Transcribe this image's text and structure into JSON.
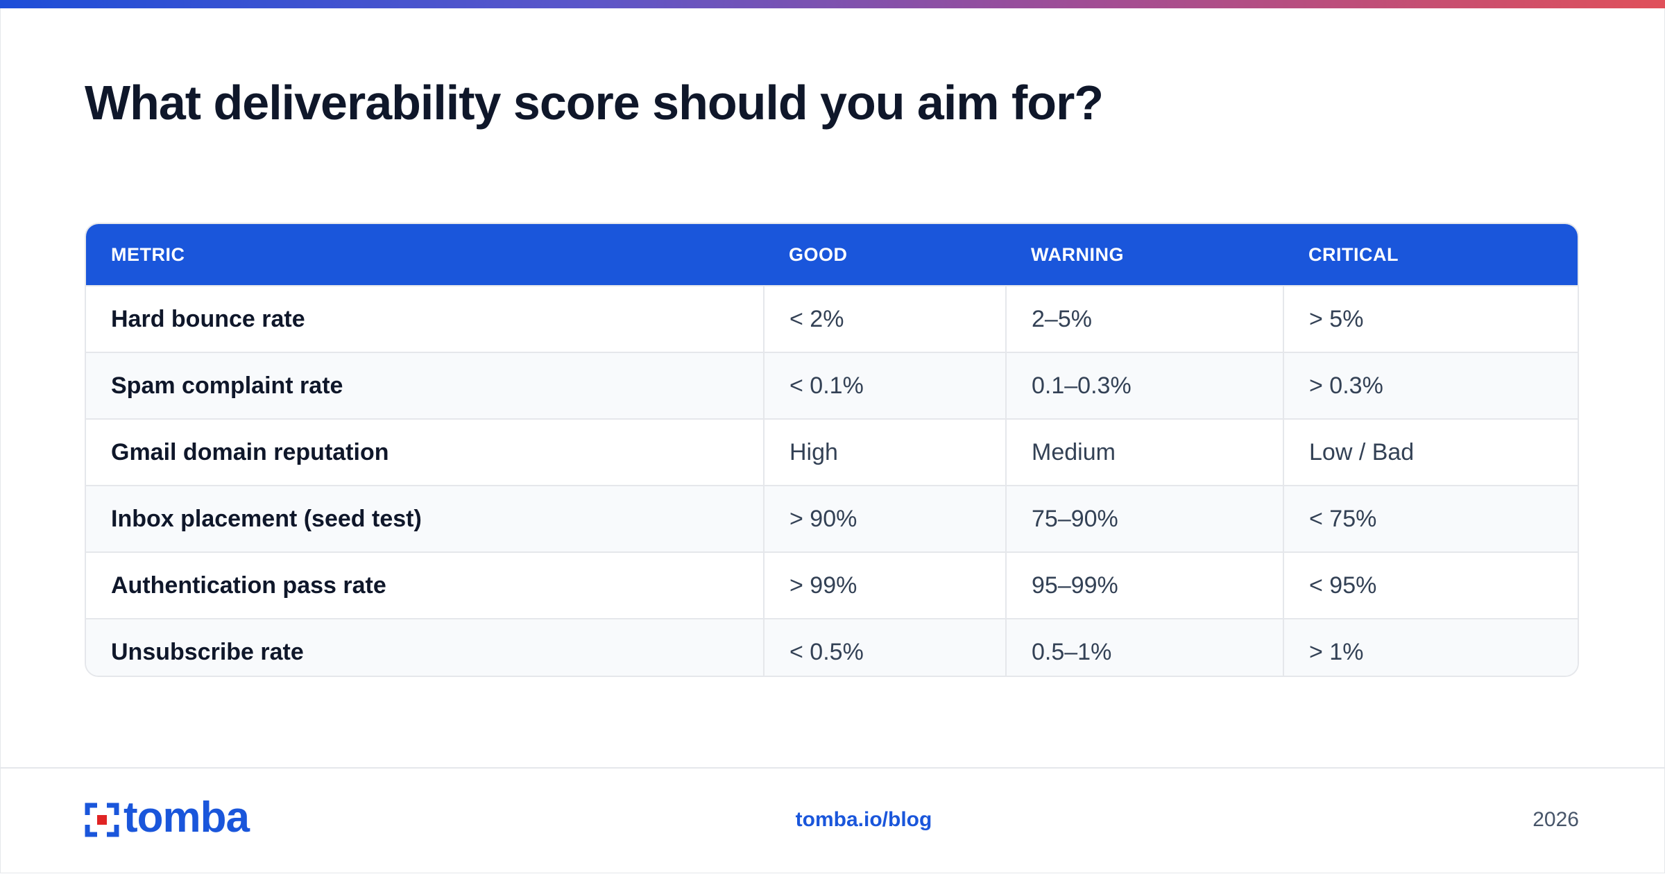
{
  "title": "What deliverability score should you aim for?",
  "table": {
    "headers": [
      "METRIC",
      "GOOD",
      "WARNING",
      "CRITICAL"
    ],
    "rows": [
      [
        "Hard bounce rate",
        "< 2%",
        "2–5%",
        "> 5%"
      ],
      [
        "Spam complaint rate",
        "< 0.1%",
        "0.1–0.3%",
        "> 0.3%"
      ],
      [
        "Gmail domain reputation",
        "High",
        "Medium",
        "Low / Bad"
      ],
      [
        "Inbox placement (seed test)",
        "> 90%",
        "75–90%",
        "< 75%"
      ],
      [
        "Authentication pass rate",
        "> 99%",
        "95–99%",
        "< 95%"
      ],
      [
        "Unsubscribe rate",
        "< 0.5%",
        "0.5–1%",
        "> 1%"
      ]
    ]
  },
  "footer": {
    "logo_text": "tomba",
    "link": "tomba.io/blog",
    "year": "2026"
  },
  "colors": {
    "accent": "#1a56db",
    "logo_red": "#e02424",
    "gradient_start": "#1d4ed8",
    "gradient_end": "#e0505a"
  }
}
